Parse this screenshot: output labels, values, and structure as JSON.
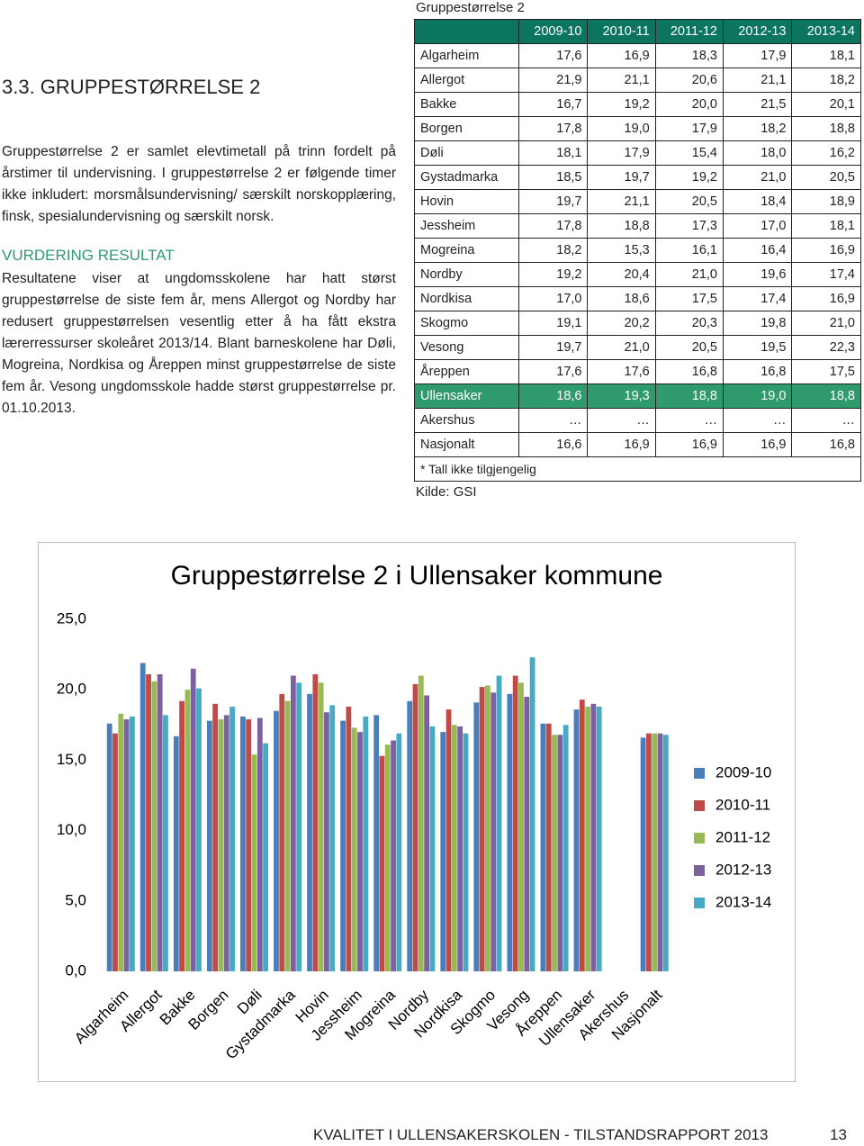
{
  "section_heading": "3.3. GRUPPESTØRRELSE 2",
  "intro": "Gruppestørrelse 2 er samlet elevtimetall på trinn fordelt på årstimer til undervisning. I gruppestørrelse 2 er følgende timer ikke inkludert: morsmålsundervisning/ særskilt norskopplæring, finsk, spesialundervisning og særskilt norsk.",
  "subheading": "VURDERING RESULTAT",
  "body": "Resultatene viser at ungdomsskolene har hatt størst gruppestørrelse de siste fem år, mens Allergot og Nordby har redusert gruppestørrelsen vesentlig etter å ha fått ekstra lærerressurser skoleåret 2013/14. Blant barneskolene har Døli, Mogreina, Nordkisa og Åreppen minst gruppestørrelse de siste fem år. Vesong ungdomsskole hadde størst gruppestørrelse pr. 01.10.2013.",
  "table": {
    "caption": "Gruppestørrelse 2",
    "header": [
      "2009-10",
      "2010-11",
      "2011-12",
      "2012-13",
      "2013-14"
    ],
    "rows": [
      [
        "Algarheim",
        "17,6",
        "16,9",
        "18,3",
        "17,9",
        "18,1"
      ],
      [
        "Allergot",
        "21,9",
        "21,1",
        "20,6",
        "21,1",
        "18,2"
      ],
      [
        "Bakke",
        "16,7",
        "19,2",
        "20,0",
        "21,5",
        "20,1"
      ],
      [
        "Borgen",
        "17,8",
        "19,0",
        "17,9",
        "18,2",
        "18,8"
      ],
      [
        "Døli",
        "18,1",
        "17,9",
        "15,4",
        "18,0",
        "16,2"
      ],
      [
        "Gystadmarka",
        "18,5",
        "19,7",
        "19,2",
        "21,0",
        "20,5"
      ],
      [
        "Hovin",
        "19,7",
        "21,1",
        "20,5",
        "18,4",
        "18,9"
      ],
      [
        "Jessheim",
        "17,8",
        "18,8",
        "17,3",
        "17,0",
        "18,1"
      ],
      [
        "Mogreina",
        "18,2",
        "15,3",
        "16,1",
        "16,4",
        "16,9"
      ],
      [
        "Nordby",
        "19,2",
        "20,4",
        "21,0",
        "19,6",
        "17,4"
      ],
      [
        "Nordkisa",
        "17,0",
        "18,6",
        "17,5",
        "17,4",
        "16,9"
      ],
      [
        "Skogmo",
        "19,1",
        "20,2",
        "20,3",
        "19,8",
        "21,0"
      ],
      [
        "Vesong",
        "19,7",
        "21,0",
        "20,5",
        "19,5",
        "22,3"
      ],
      [
        "Åreppen",
        "17,6",
        "17,6",
        "16,8",
        "16,8",
        "17,5"
      ],
      [
        "Ullensaker",
        "18,6",
        "19,3",
        "18,8",
        "19,0",
        "18,8"
      ],
      [
        "Akershus",
        "…",
        "…",
        "…",
        "…",
        "…"
      ],
      [
        "Nasjonalt",
        "16,6",
        "16,9",
        "16,9",
        "16,9",
        "16,8"
      ]
    ],
    "note": "* Tall ikke tilgjengelig",
    "source": "Kilde: GSI",
    "header_color": "#0b7560",
    "highlight_row": 14,
    "highlight_color": "#2f9a6b"
  },
  "chart_data": {
    "type": "bar",
    "title": "Gruppestørrelse 2 i Ullensaker kommune",
    "categories": [
      "Algarheim",
      "Allergot",
      "Bakke",
      "Borgen",
      "Døli",
      "Gystadmarka",
      "Hovin",
      "Jessheim",
      "Mogreina",
      "Nordby",
      "Nordkisa",
      "Skogmo",
      "Vesong",
      "Åreppen",
      "Ullensaker",
      "Akershus",
      "Nasjonalt"
    ],
    "series": [
      {
        "name": "2009-10",
        "color": "#4a7ebb",
        "values": [
          17.6,
          21.9,
          16.7,
          17.8,
          18.1,
          18.5,
          19.7,
          17.8,
          18.2,
          19.2,
          17.0,
          19.1,
          19.7,
          17.6,
          18.6,
          null,
          16.6
        ]
      },
      {
        "name": "2010-11",
        "color": "#be4b48",
        "values": [
          16.9,
          21.1,
          19.2,
          19.0,
          17.9,
          19.7,
          21.1,
          18.8,
          15.3,
          20.4,
          18.6,
          20.2,
          21.0,
          17.6,
          19.3,
          null,
          16.9
        ]
      },
      {
        "name": "2011-12",
        "color": "#98b954",
        "values": [
          18.3,
          20.6,
          20.0,
          17.9,
          15.4,
          19.2,
          20.5,
          17.3,
          16.1,
          21.0,
          17.5,
          20.3,
          20.5,
          16.8,
          18.8,
          null,
          16.9
        ]
      },
      {
        "name": "2012-13",
        "color": "#7d60a0",
        "values": [
          17.9,
          21.1,
          21.5,
          18.2,
          18.0,
          21.0,
          18.4,
          17.0,
          16.4,
          19.6,
          17.4,
          19.8,
          19.5,
          16.8,
          19.0,
          null,
          16.9
        ]
      },
      {
        "name": "2013-14",
        "color": "#46aac5",
        "values": [
          18.1,
          18.2,
          20.1,
          18.8,
          16.2,
          20.5,
          18.9,
          18.1,
          16.9,
          17.4,
          16.9,
          21.0,
          22.3,
          17.5,
          18.8,
          null,
          16.8
        ]
      }
    ],
    "ylim": [
      0,
      25
    ],
    "yticks": [
      {
        "value": 0,
        "label": "0,0"
      },
      {
        "value": 5,
        "label": "5,0"
      },
      {
        "value": 10,
        "label": "10,0"
      },
      {
        "value": 15,
        "label": "15,0"
      },
      {
        "value": 20,
        "label": "20,0"
      },
      {
        "value": 25,
        "label": "25,0"
      }
    ],
    "grid": false,
    "legend": "right"
  },
  "footer": {
    "text": "KVALITET I ULLENSAKERSKOLEN - TILSTANDSRAPPORT 2013",
    "page": "13"
  }
}
